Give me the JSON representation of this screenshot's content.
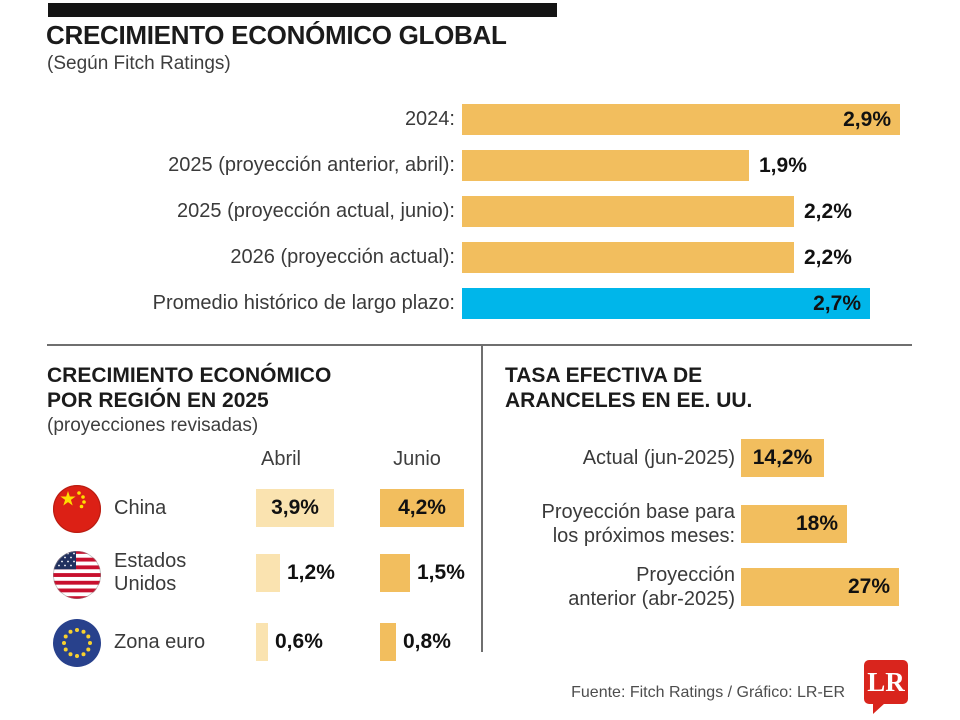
{
  "colors": {
    "orange": "#F2BE5E",
    "light_orange": "#FAE3B0",
    "blue": "#00B6EA",
    "black_bar": "#141414",
    "logo_red": "#D9251D"
  },
  "chart_data": [
    {
      "id": "global_growth",
      "type": "bar",
      "orientation": "horizontal",
      "title": "CRECIMIENTO ECONÓMICO GLOBAL",
      "subtitle": "(Según Fitch Ratings)",
      "unit": "%",
      "value_range": [
        0,
        2.9
      ],
      "rows": [
        {
          "label": "2024:",
          "value": 2.9,
          "display": "2,9%",
          "color_key": "orange",
          "value_inside": true
        },
        {
          "label": "2025 (proyección anterior, abril):",
          "value": 1.9,
          "display": "1,9%",
          "color_key": "orange",
          "value_inside": false
        },
        {
          "label": "2025 (proyección actual, junio):",
          "value": 2.2,
          "display": "2,2%",
          "color_key": "orange",
          "value_inside": false
        },
        {
          "label": "2026 (proyección actual):",
          "value": 2.2,
          "display": "2,2%",
          "color_key": "orange",
          "value_inside": false
        },
        {
          "label": "Promedio histórico de largo plazo:",
          "value": 2.7,
          "display": "2,7%",
          "color_key": "blue",
          "value_inside": true
        }
      ]
    },
    {
      "id": "regional_growth_2025",
      "type": "bar",
      "orientation": "horizontal",
      "title_line1": "CRECIMIENTO ECONÓMICO",
      "title_line2": "POR REGIÓN EN 2025",
      "subtitle": "(proyecciones revisadas)",
      "unit": "%",
      "columns": [
        "Abril",
        "Junio"
      ],
      "rows": [
        {
          "region": "China",
          "flag": "china-flag-icon",
          "abril": 3.9,
          "abril_display": "3,9%",
          "junio": 4.2,
          "junio_display": "4,2%"
        },
        {
          "region": "Estados Unidos",
          "flag": "us-flag-icon",
          "abril": 1.2,
          "abril_display": "1,2%",
          "junio": 1.5,
          "junio_display": "1,5%"
        },
        {
          "region": "Zona euro",
          "flag": "eu-flag-icon",
          "abril": 0.6,
          "abril_display": "0,6%",
          "junio": 0.8,
          "junio_display": "0,8%"
        }
      ]
    },
    {
      "id": "us_effective_tariff_rate",
      "type": "bar",
      "orientation": "horizontal",
      "title_line1": "TASA EFECTIVA DE",
      "title_line2": "ARANCELES EN EE. UU.",
      "unit": "%",
      "rows": [
        {
          "label_line1": "Actual (jun-2025)",
          "label_line2": "",
          "value": 14.2,
          "display": "14,2%"
        },
        {
          "label_line1": "Proyección base para",
          "label_line2": "los próximos meses:",
          "value": 18,
          "display": "18%"
        },
        {
          "label_line1": "Proyección",
          "label_line2": "anterior (abr-2025)",
          "value": 27,
          "display": "27%"
        }
      ]
    }
  ],
  "footer": {
    "credit": "Fuente: Fitch Ratings / Gráfico: LR-ER",
    "logo_text": "LR"
  }
}
